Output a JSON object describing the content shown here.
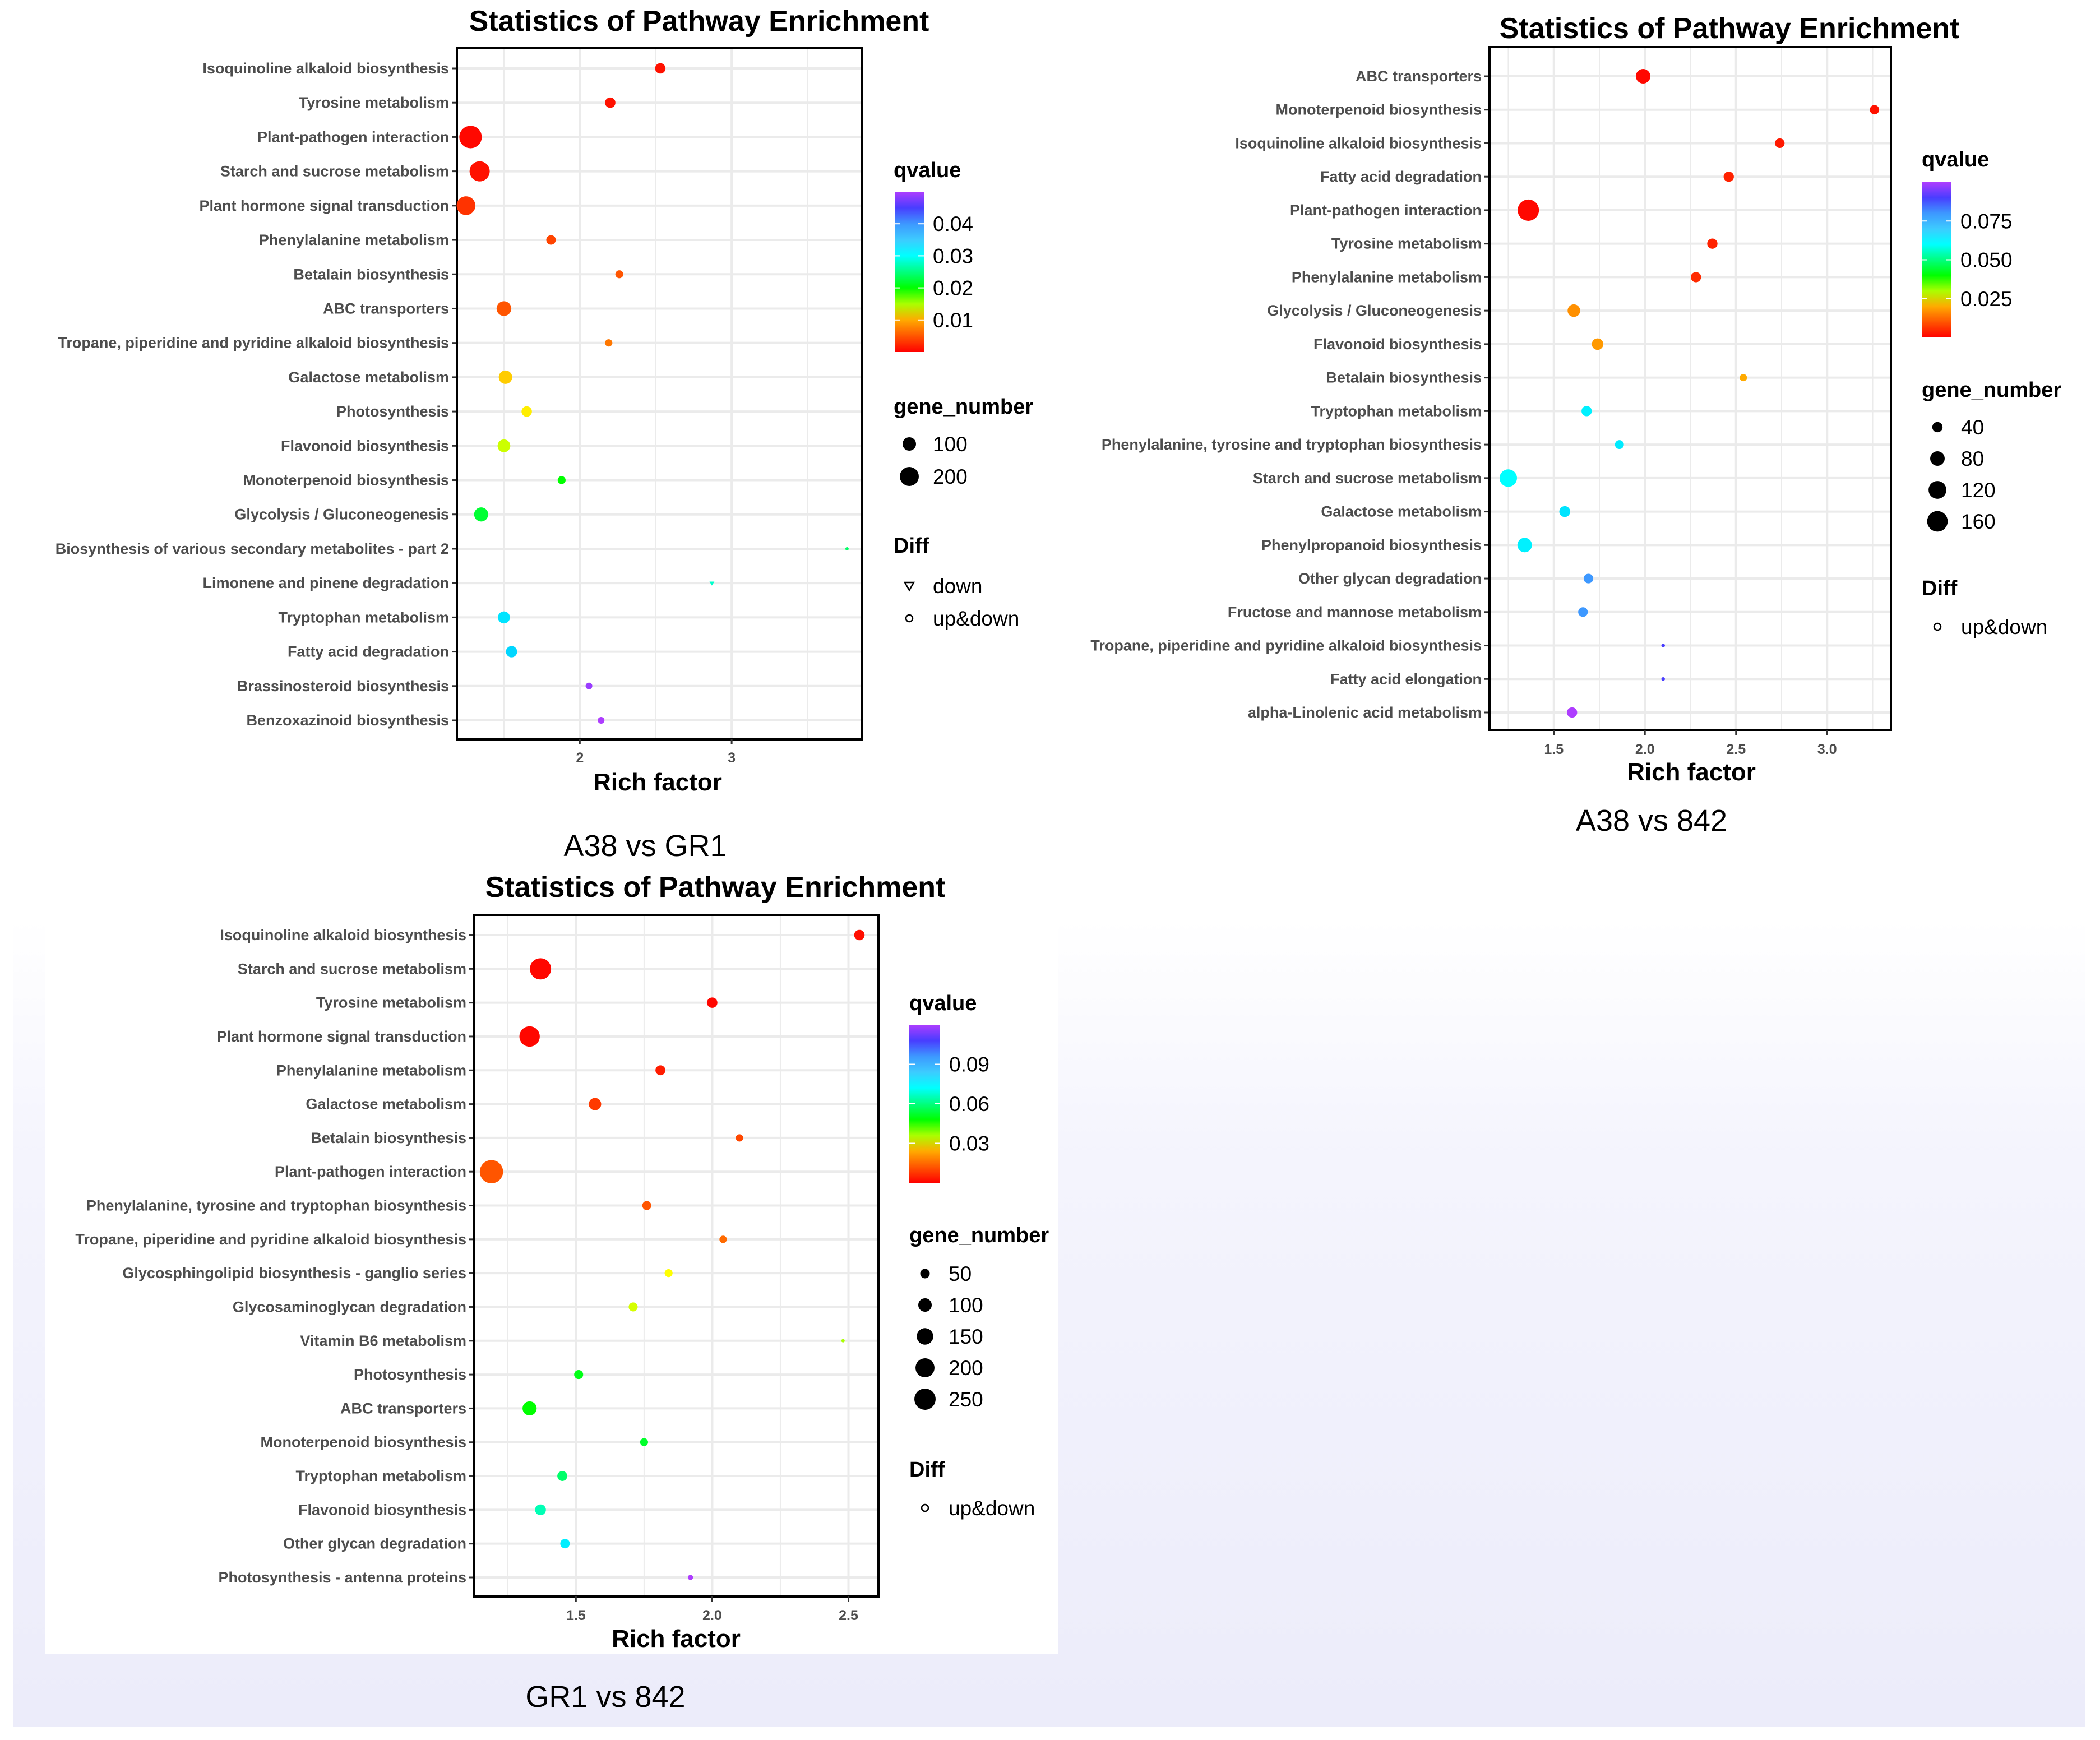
{
  "chart_data": [
    {
      "type": "scatter",
      "title": "Statistics of Pathway Enrichment",
      "xlabel": "Rich factor",
      "caption": "A38 vs GR1",
      "xlim": [
        1.19,
        3.86
      ],
      "xticks": [
        2,
        3
      ],
      "xtick_labels": [
        "2",
        "3"
      ],
      "categories": [
        "Isoquinoline alkaloid biosynthesis",
        "Tyrosine metabolism",
        "Plant-pathogen interaction",
        "Starch and sucrose metabolism",
        "Plant hormone signal transduction",
        "Phenylalanine metabolism",
        "Betalain biosynthesis",
        "ABC transporters",
        "Tropane, piperidine and pyridine alkaloid biosynthesis",
        "Galactose metabolism",
        "Photosynthesis",
        "Flavonoid biosynthesis",
        "Monoterpenoid biosynthesis",
        "Glycolysis / Gluconeogenesis",
        "Biosynthesis of various secondary metabolites - part 2",
        "Limonene and pinene degradation",
        "Tryptophan metabolism",
        "Fatty acid degradation",
        "Brassinosteroid biosynthesis",
        "Benzoxazinoid biosynthesis"
      ],
      "x": [
        2.53,
        2.2,
        1.28,
        1.34,
        1.25,
        1.81,
        2.26,
        1.5,
        2.19,
        1.51,
        1.65,
        1.5,
        1.88,
        1.35,
        3.76,
        2.87,
        1.5,
        1.55,
        2.06,
        2.14
      ],
      "gene_number": [
        60,
        60,
        280,
        225,
        195,
        50,
        35,
        120,
        30,
        100,
        60,
        90,
        35,
        110,
        5,
        8,
        80,
        70,
        25,
        25
      ],
      "qvalue": [
        0.001,
        0.001,
        0.0005,
        0.001,
        0.003,
        0.004,
        0.005,
        0.005,
        0.007,
        0.011,
        0.012,
        0.014,
        0.02,
        0.022,
        0.024,
        0.028,
        0.032,
        0.033,
        0.049,
        0.05
      ],
      "diff": [
        "up&down",
        "up&down",
        "up&down",
        "up&down",
        "up&down",
        "up&down",
        "up&down",
        "up&down",
        "up&down",
        "up&down",
        "up&down",
        "up&down",
        "up&down",
        "up&down",
        "up&down",
        "down",
        "up&down",
        "up&down",
        "up&down",
        "up&down"
      ],
      "qvalue_legend": {
        "title": "qvalue",
        "range": [
          0,
          0.05
        ],
        "ticks": [
          0.01,
          0.02,
          0.03,
          0.04
        ],
        "tick_labels": [
          "0.01",
          "0.02",
          "0.03",
          "0.04"
        ]
      },
      "size_legend": {
        "title": "gene_number",
        "values": [
          100,
          200
        ],
        "labels": [
          "100",
          "200"
        ]
      },
      "diff_legend": {
        "title": "Diff",
        "entries": [
          "down",
          "up&down"
        ]
      }
    },
    {
      "type": "scatter",
      "title": "Statistics of Pathway Enrichment",
      "xlabel": "Rich factor",
      "caption": "A38 vs 842",
      "xlim": [
        1.147,
        3.35
      ],
      "xticks": [
        1.5,
        2.0,
        2.5,
        3.0
      ],
      "xtick_labels": [
        "1.5",
        "2.0",
        "2.5",
        "3.0"
      ],
      "categories": [
        "ABC transporters",
        "Monoterpenoid biosynthesis",
        "Isoquinoline alkaloid biosynthesis",
        "Fatty acid degradation",
        "Plant-pathogen interaction",
        "Tyrosine metabolism",
        "Phenylalanine metabolism",
        "Glycolysis / Gluconeogenesis",
        "Flavonoid biosynthesis",
        "Betalain biosynthesis",
        "Tryptophan metabolism",
        "Phenylalanine, tyrosine and tryptophan biosynthesis",
        "Starch and sucrose metabolism",
        "Galactose metabolism",
        "Phenylpropanoid biosynthesis",
        "Other glycan degradation",
        "Fructose and mannose metabolism",
        "Tropane, piperidine and pyridine alkaloid biosynthesis",
        "Fatty acid elongation",
        "alpha-Linolenic acid metabolism"
      ],
      "x": [
        1.99,
        3.26,
        2.74,
        2.46,
        1.36,
        2.37,
        2.28,
        1.61,
        1.74,
        2.54,
        1.68,
        1.86,
        1.25,
        1.56,
        1.34,
        1.69,
        1.66,
        2.1,
        2.1,
        1.6
      ],
      "gene_number": [
        80,
        33,
        35,
        40,
        172,
        40,
        40,
        60,
        50,
        20,
        40,
        30,
        115,
        45,
        80,
        35,
        35,
        5,
        5,
        40
      ],
      "qvalue": [
        0.001,
        0.002,
        0.003,
        0.004,
        0.001,
        0.004,
        0.005,
        0.017,
        0.018,
        0.02,
        0.062,
        0.063,
        0.06,
        0.064,
        0.062,
        0.08,
        0.08,
        0.09,
        0.09,
        0.1
      ],
      "diff": [
        "up&down",
        "up&down",
        "up&down",
        "up&down",
        "up&down",
        "up&down",
        "up&down",
        "up&down",
        "up&down",
        "up&down",
        "up&down",
        "up&down",
        "up&down",
        "up&down",
        "up&down",
        "up&down",
        "up&down",
        "up&down",
        "up&down",
        "up&down"
      ],
      "qvalue_legend": {
        "title": "qvalue",
        "range": [
          0,
          0.1
        ],
        "ticks": [
          0.025,
          0.05,
          0.075
        ],
        "tick_labels": [
          "0.025",
          "0.050",
          "0.075"
        ]
      },
      "size_legend": {
        "title": "gene_number",
        "values": [
          40,
          80,
          120,
          160
        ],
        "labels": [
          "40",
          "80",
          "120",
          "160"
        ]
      },
      "diff_legend": {
        "title": "Diff",
        "entries": [
          "up&down"
        ]
      }
    },
    {
      "type": "scatter",
      "title": "Statistics of Pathway Enrichment",
      "xlabel": "Rich factor",
      "caption": "GR1 vs 842",
      "xlim": [
        1.127,
        2.61
      ],
      "xticks": [
        1.5,
        2.0,
        2.5
      ],
      "xtick_labels": [
        "1.5",
        "2.0",
        "2.5"
      ],
      "categories": [
        "Isoquinoline alkaloid biosynthesis",
        "Starch and sucrose metabolism",
        "Tyrosine metabolism",
        "Plant hormone signal transduction",
        "Phenylalanine metabolism",
        "Galactose metabolism",
        "Betalain biosynthesis",
        "Plant-pathogen interaction",
        "Phenylalanine, tyrosine and tryptophan biosynthesis",
        "Tropane, piperidine and pyridine alkaloid biosynthesis",
        "Glycosphingolipid biosynthesis - ganglio series",
        "Glycosaminoglycan degradation",
        "Vitamin B6 metabolism",
        "Photosynthesis",
        "ABC transporters",
        "Monoterpenoid biosynthesis",
        "Tryptophan metabolism",
        "Flavonoid biosynthesis",
        "Other glycan degradation",
        "Photosynthesis - antenna proteins"
      ],
      "x": [
        2.54,
        1.37,
        2.0,
        1.33,
        1.81,
        1.57,
        2.1,
        1.19,
        1.76,
        2.04,
        1.84,
        1.71,
        2.48,
        1.51,
        1.33,
        1.75,
        1.45,
        1.37,
        1.46,
        1.92
      ],
      "gene_number": [
        60,
        250,
        60,
        230,
        55,
        85,
        30,
        300,
        45,
        30,
        35,
        45,
        5,
        45,
        110,
        35,
        55,
        65,
        50,
        15
      ],
      "qvalue": [
        0.002,
        0.001,
        0.001,
        0.001,
        0.004,
        0.008,
        0.01,
        0.012,
        0.012,
        0.015,
        0.03,
        0.033,
        0.036,
        0.05,
        0.048,
        0.052,
        0.058,
        0.065,
        0.075,
        0.12
      ],
      "diff": [
        "up&down",
        "up&down",
        "up&down",
        "up&down",
        "up&down",
        "up&down",
        "up&down",
        "up&down",
        "up&down",
        "up&down",
        "up&down",
        "up&down",
        "up&down",
        "up&down",
        "up&down",
        "up&down",
        "up&down",
        "up&down",
        "up&down",
        "up&down"
      ],
      "qvalue_legend": {
        "title": "qvalue",
        "range": [
          0,
          0.12
        ],
        "ticks": [
          0.03,
          0.06,
          0.09
        ],
        "tick_labels": [
          "0.03",
          "0.06",
          "0.09"
        ]
      },
      "size_legend": {
        "title": "gene_number",
        "values": [
          50,
          100,
          150,
          200,
          250
        ],
        "labels": [
          "50",
          "100",
          "150",
          "200",
          "250"
        ]
      },
      "diff_legend": {
        "title": "Diff",
        "entries": [
          "up&down"
        ]
      }
    }
  ]
}
